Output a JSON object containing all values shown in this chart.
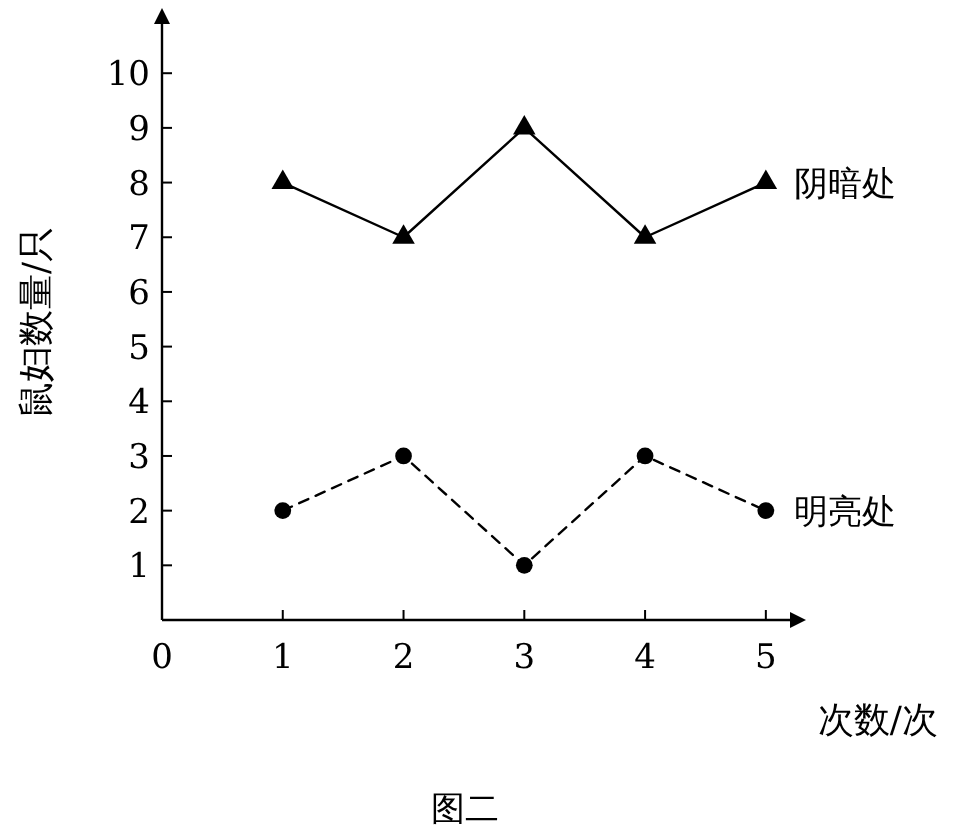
{
  "chart_data": {
    "type": "line",
    "title": "图二",
    "xlabel": "次数/次",
    "ylabel": "鼠妇数量/只",
    "x": [
      1,
      2,
      3,
      4,
      5
    ],
    "series": [
      {
        "name": "阴暗处",
        "color": "#000000",
        "values": [
          8,
          7,
          9,
          7,
          8
        ],
        "marker": "triangle",
        "line_style": "solid"
      },
      {
        "name": "明亮处",
        "color": "#000000",
        "values": [
          2,
          3,
          1,
          3,
          2
        ],
        "marker": "circle",
        "line_style": "dashed"
      }
    ],
    "xlim": [
      0,
      5.2
    ],
    "xticks": [
      0,
      1,
      2,
      3,
      4,
      5
    ],
    "ylim": [
      0,
      10.9
    ],
    "yticks": [
      1,
      2,
      3,
      4,
      5,
      6,
      7,
      8,
      9,
      10
    ]
  }
}
